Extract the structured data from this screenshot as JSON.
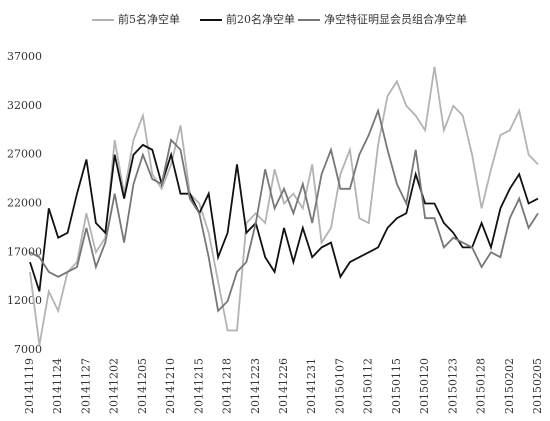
{
  "chart_data": {
    "type": "line",
    "categories": [
      "20141119",
      null,
      null,
      "20141124",
      null,
      null,
      "20141127",
      null,
      null,
      "20141202",
      null,
      null,
      "20141205",
      null,
      null,
      "20141210",
      null,
      null,
      "20141215",
      null,
      null,
      "20141218",
      null,
      null,
      "20141223",
      null,
      null,
      "20141226",
      null,
      null,
      "20141231",
      null,
      null,
      "20150107",
      null,
      null,
      "20150112",
      null,
      null,
      "20150115",
      null,
      null,
      "20150120",
      null,
      null,
      "20150123",
      null,
      null,
      "20150128",
      null,
      null,
      "20150202",
      null,
      null,
      "20150205"
    ],
    "series": [
      {
        "name": "前5名净空单",
        "color": "#b3b3b3",
        "values": [
          15000,
          7500,
          13000,
          11000,
          15000,
          16000,
          21000,
          17000,
          18500,
          28500,
          23000,
          28500,
          31000,
          25000,
          23500,
          26000,
          30000,
          23000,
          22000,
          19000,
          14000,
          9000,
          9000,
          20000,
          21000,
          20000,
          25500,
          22000,
          23000,
          21500,
          26000,
          18000,
          19500,
          25000,
          27500,
          20500,
          20000,
          28000,
          33000,
          34500,
          32000,
          31000,
          29500,
          36000,
          29500,
          32000,
          31000,
          27000,
          21500,
          25500,
          29000,
          29500,
          31500,
          27000,
          26000
        ]
      },
      {
        "name": "前20名净空单",
        "color": "#111111",
        "values": [
          16000,
          13000,
          21500,
          18500,
          19000,
          23000,
          26500,
          20000,
          19000,
          27000,
          22500,
          27000,
          28000,
          27500,
          24000,
          27000,
          23000,
          23000,
          21000,
          23000,
          16500,
          19000,
          26000,
          19000,
          20000,
          16500,
          15000,
          19500,
          16000,
          19500,
          16500,
          17500,
          18000,
          14500,
          16000,
          16500,
          17000,
          17500,
          19500,
          20500,
          21000,
          25000,
          22000,
          22000,
          20000,
          19000,
          17500,
          17500,
          20000,
          17500,
          21500,
          23500,
          25000,
          22000,
          22500
        ]
      },
      {
        "name": "净空特征明显会员组合净空单",
        "color": "#777777",
        "values": [
          17000,
          16500,
          15000,
          14500,
          15000,
          15500,
          19500,
          15500,
          18000,
          23000,
          18000,
          24000,
          27000,
          24500,
          24000,
          28500,
          27500,
          22500,
          21000,
          16500,
          11000,
          12000,
          15000,
          16000,
          20000,
          25500,
          21500,
          23500,
          21000,
          24000,
          20000,
          25000,
          27500,
          23500,
          23500,
          27000,
          29000,
          31500,
          27500,
          24000,
          22000,
          27500,
          20500,
          20500,
          17500,
          18500,
          18000,
          17500,
          15500,
          17000,
          16500,
          20500,
          22500,
          19500,
          21000
        ]
      }
    ],
    "ylim": [
      7000,
      37000
    ],
    "yticks": [
      7000,
      12000,
      17000,
      22000,
      27000,
      32000,
      37000
    ],
    "grid": false
  }
}
